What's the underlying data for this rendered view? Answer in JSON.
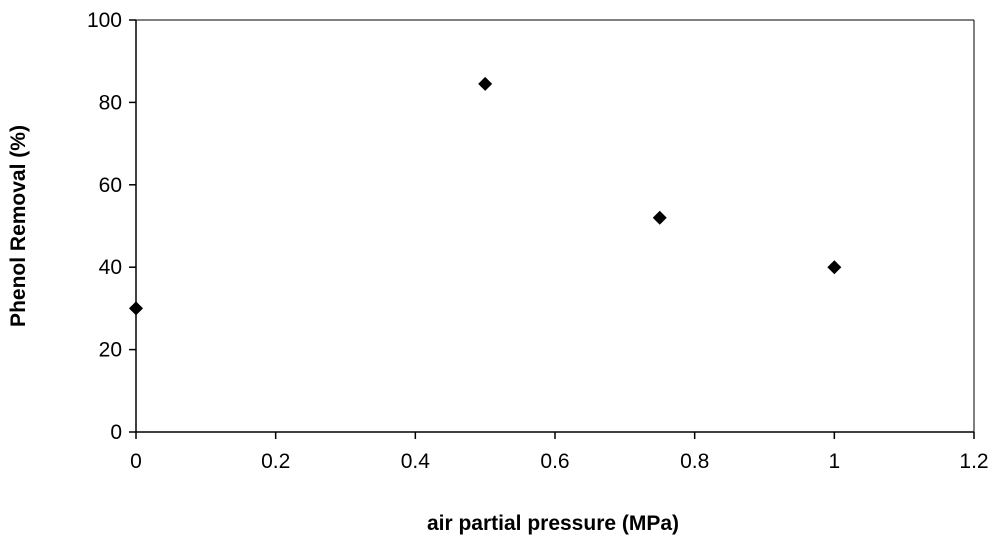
{
  "chart_data": {
    "type": "scatter",
    "xlabel": "air partial pressure (MPa)",
    "ylabel": "Phenol Removal (%)",
    "xlim": [
      0,
      1.2
    ],
    "ylim": [
      0,
      100
    ],
    "x_ticks": [
      "0",
      "0.2",
      "0.4",
      "0.6",
      "0.8",
      "1",
      "1.2"
    ],
    "y_ticks": [
      "0",
      "20",
      "40",
      "60",
      "80",
      "100"
    ],
    "grid": false,
    "legend": "none",
    "marker": "diamond",
    "marker_color": "#000000",
    "series": [
      {
        "x": [
          0,
          0.5,
          0.75,
          1.0
        ],
        "y": [
          30,
          84.5,
          52,
          40
        ]
      }
    ]
  }
}
